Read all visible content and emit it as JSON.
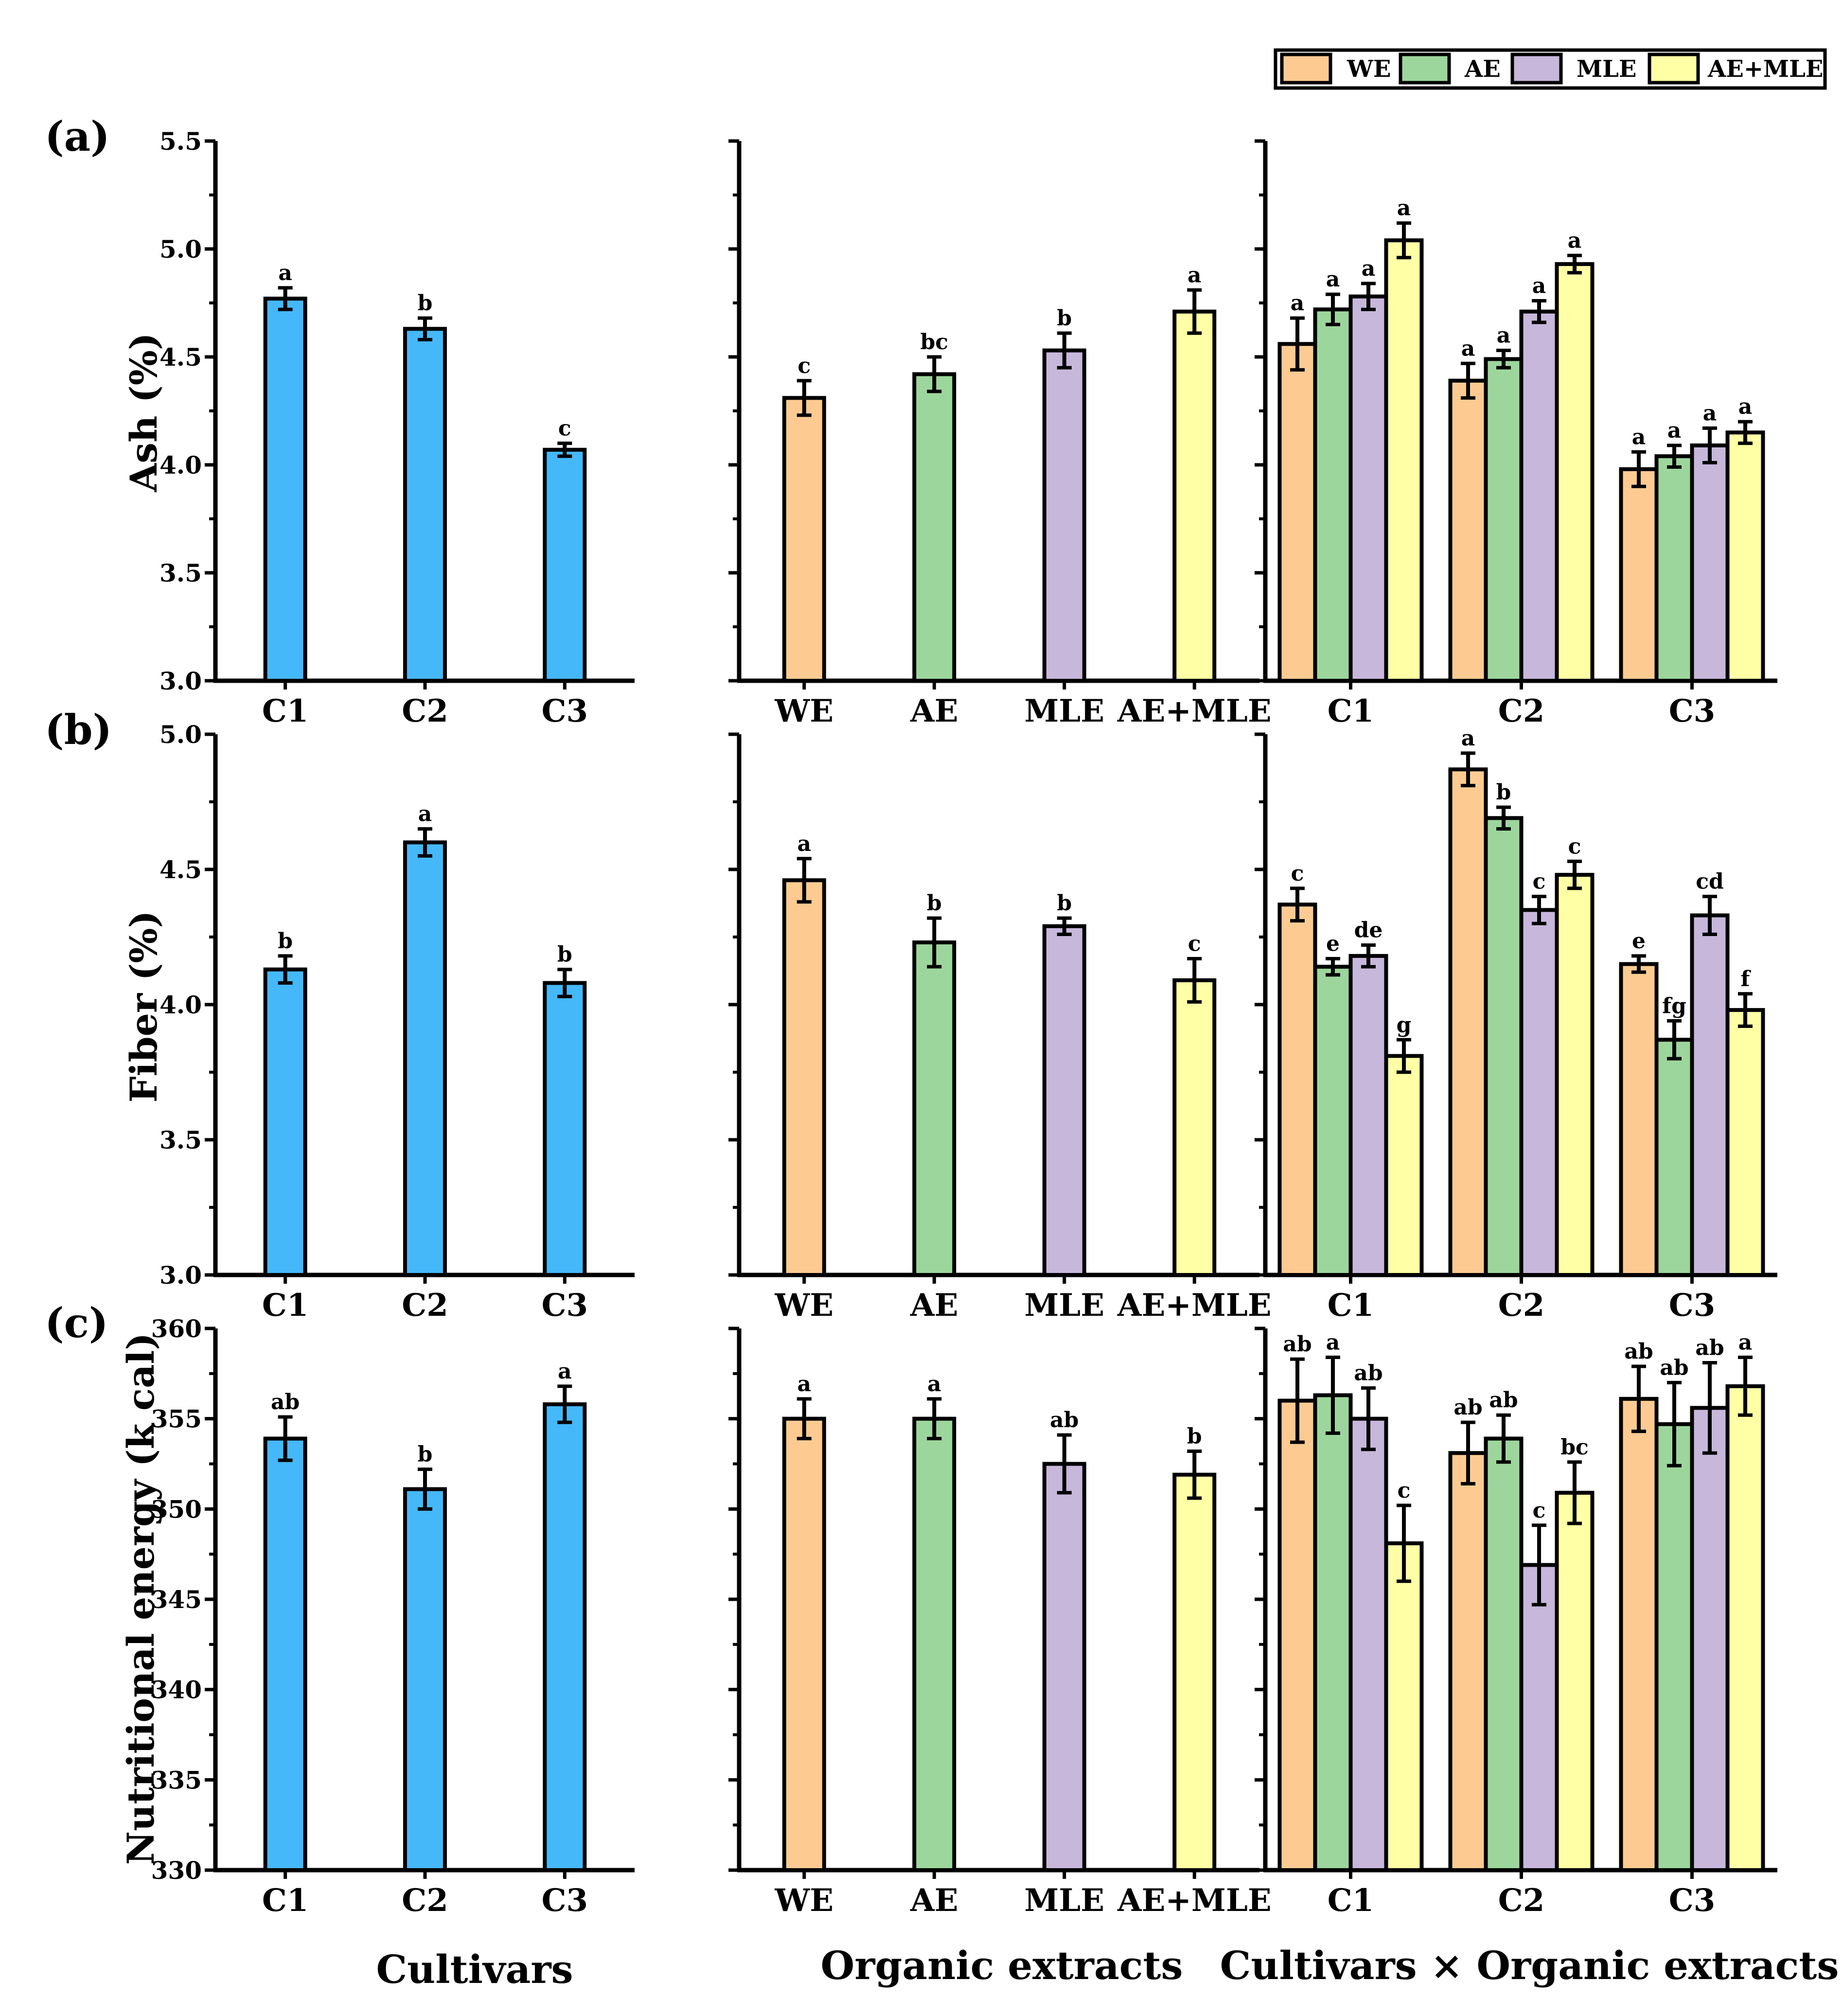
{
  "legend": {
    "items": [
      {
        "label": "WE",
        "color": "#FDCB92"
      },
      {
        "label": "AE",
        "color": "#9DD69C"
      },
      {
        "label": "MLE",
        "color": "#C7B7DB"
      },
      {
        "label": "AE+MLE",
        "color": "#FFFFA6"
      }
    ]
  },
  "colors": {
    "cultivar": "#45B8F9",
    "axis": "#000000",
    "background": "#FFFFFF"
  },
  "x_titles": [
    "Cultivars",
    "Organic extracts",
    "Cultivars × Organic extracts"
  ],
  "x_tick_labels": {
    "cultivars": [
      "C1",
      "C2",
      "C3"
    ],
    "extracts": [
      "WE",
      "AE",
      "MLE",
      "AE+MLE"
    ],
    "combined": [
      "C1",
      "C2",
      "C3"
    ]
  },
  "chart_data": [
    {
      "panel": "(a)",
      "type": "bar",
      "ylabel": "Ash (%)",
      "ylim": [
        3.0,
        5.5
      ],
      "yticks": [
        "3.0",
        "3.5",
        "4.0",
        "4.5",
        "5.0",
        "5.5"
      ],
      "cultivars": {
        "categories": [
          "C1",
          "C2",
          "C3"
        ],
        "values": [
          4.77,
          4.63,
          4.07
        ],
        "errors": [
          0.05,
          0.05,
          0.03
        ],
        "letters": [
          "a",
          "b",
          "c"
        ]
      },
      "extracts": {
        "categories": [
          "WE",
          "AE",
          "MLE",
          "AE+MLE"
        ],
        "values": [
          4.31,
          4.42,
          4.53,
          4.71
        ],
        "errors": [
          0.08,
          0.08,
          0.08,
          0.1
        ],
        "letters": [
          "c",
          "bc",
          "b",
          "a"
        ]
      },
      "combined": {
        "categories": [
          "C1",
          "C2",
          "C3"
        ],
        "series": [
          {
            "name": "WE",
            "values": [
              4.56,
              4.39,
              3.98
            ],
            "errors": [
              0.12,
              0.08,
              0.08
            ],
            "letters": [
              "a",
              "a",
              "a"
            ]
          },
          {
            "name": "AE",
            "values": [
              4.72,
              4.49,
              4.04
            ],
            "errors": [
              0.07,
              0.04,
              0.05
            ],
            "letters": [
              "a",
              "a",
              "a"
            ]
          },
          {
            "name": "MLE",
            "values": [
              4.78,
              4.71,
              4.09
            ],
            "errors": [
              0.06,
              0.05,
              0.08
            ],
            "letters": [
              "a",
              "a",
              "a"
            ]
          },
          {
            "name": "AE+MLE",
            "values": [
              5.04,
              4.93,
              4.15
            ],
            "errors": [
              0.08,
              0.04,
              0.05
            ],
            "letters": [
              "a",
              "a",
              "a"
            ]
          }
        ]
      }
    },
    {
      "panel": "(b)",
      "type": "bar",
      "ylabel": "Fiber (%)",
      "ylim": [
        3.0,
        5.0
      ],
      "yticks": [
        "3.0",
        "3.5",
        "4.0",
        "4.5",
        "5.0"
      ],
      "cultivars": {
        "categories": [
          "C1",
          "C2",
          "C3"
        ],
        "values": [
          4.13,
          4.6,
          4.08
        ],
        "errors": [
          0.05,
          0.05,
          0.05
        ],
        "letters": [
          "b",
          "a",
          "b"
        ]
      },
      "extracts": {
        "categories": [
          "WE",
          "AE",
          "MLE",
          "AE+MLE"
        ],
        "values": [
          4.46,
          4.23,
          4.29,
          4.09
        ],
        "errors": [
          0.08,
          0.09,
          0.03,
          0.08
        ],
        "letters": [
          "a",
          "b",
          "b",
          "c"
        ]
      },
      "combined": {
        "categories": [
          "C1",
          "C2",
          "C3"
        ],
        "series": [
          {
            "name": "WE",
            "values": [
              4.37,
              4.87,
              4.15
            ],
            "errors": [
              0.06,
              0.06,
              0.03
            ],
            "letters": [
              "c",
              "a",
              "e"
            ]
          },
          {
            "name": "AE",
            "values": [
              4.14,
              4.69,
              3.87
            ],
            "errors": [
              0.03,
              0.04,
              0.07
            ],
            "letters": [
              "e",
              "b",
              "fg"
            ]
          },
          {
            "name": "MLE",
            "values": [
              4.18,
              4.35,
              4.33
            ],
            "errors": [
              0.04,
              0.05,
              0.07
            ],
            "letters": [
              "de",
              "c",
              "cd"
            ]
          },
          {
            "name": "AE+MLE",
            "values": [
              3.81,
              4.48,
              3.98
            ],
            "errors": [
              0.06,
              0.05,
              0.06
            ],
            "letters": [
              "g",
              "c",
              "f"
            ]
          }
        ]
      }
    },
    {
      "panel": "(c)",
      "type": "bar",
      "ylabel": "Nutritional energy (k cal)",
      "ylim": [
        330,
        360
      ],
      "yticks": [
        "330",
        "335",
        "340",
        "345",
        "350",
        "355",
        "360"
      ],
      "cultivars": {
        "categories": [
          "C1",
          "C2",
          "C3"
        ],
        "values": [
          353.9,
          351.1,
          355.8
        ],
        "errors": [
          1.2,
          1.1,
          1.0
        ],
        "letters": [
          "ab",
          "b",
          "a"
        ]
      },
      "extracts": {
        "categories": [
          "WE",
          "AE",
          "MLE",
          "AE+MLE"
        ],
        "values": [
          355.0,
          355.0,
          352.5,
          351.9
        ],
        "errors": [
          1.1,
          1.1,
          1.6,
          1.3
        ],
        "letters": [
          "a",
          "a",
          "ab",
          "b"
        ]
      },
      "combined": {
        "categories": [
          "C1",
          "C2",
          "C3"
        ],
        "series": [
          {
            "name": "WE",
            "values": [
              356.0,
              353.1,
              356.1
            ],
            "errors": [
              2.3,
              1.7,
              1.8
            ],
            "letters": [
              "ab",
              "ab",
              "ab"
            ]
          },
          {
            "name": "AE",
            "values": [
              356.3,
              353.9,
              354.7
            ],
            "errors": [
              2.1,
              1.3,
              2.3
            ],
            "letters": [
              "a",
              "ab",
              "ab"
            ]
          },
          {
            "name": "MLE",
            "values": [
              355.0,
              346.9,
              355.6
            ],
            "errors": [
              1.7,
              2.2,
              2.5
            ],
            "letters": [
              "ab",
              "c",
              "ab"
            ]
          },
          {
            "name": "AE+MLE",
            "values": [
              348.1,
              350.9,
              356.8
            ],
            "errors": [
              2.1,
              1.7,
              1.6
            ],
            "letters": [
              "c",
              "bc",
              "a"
            ]
          }
        ]
      }
    }
  ]
}
